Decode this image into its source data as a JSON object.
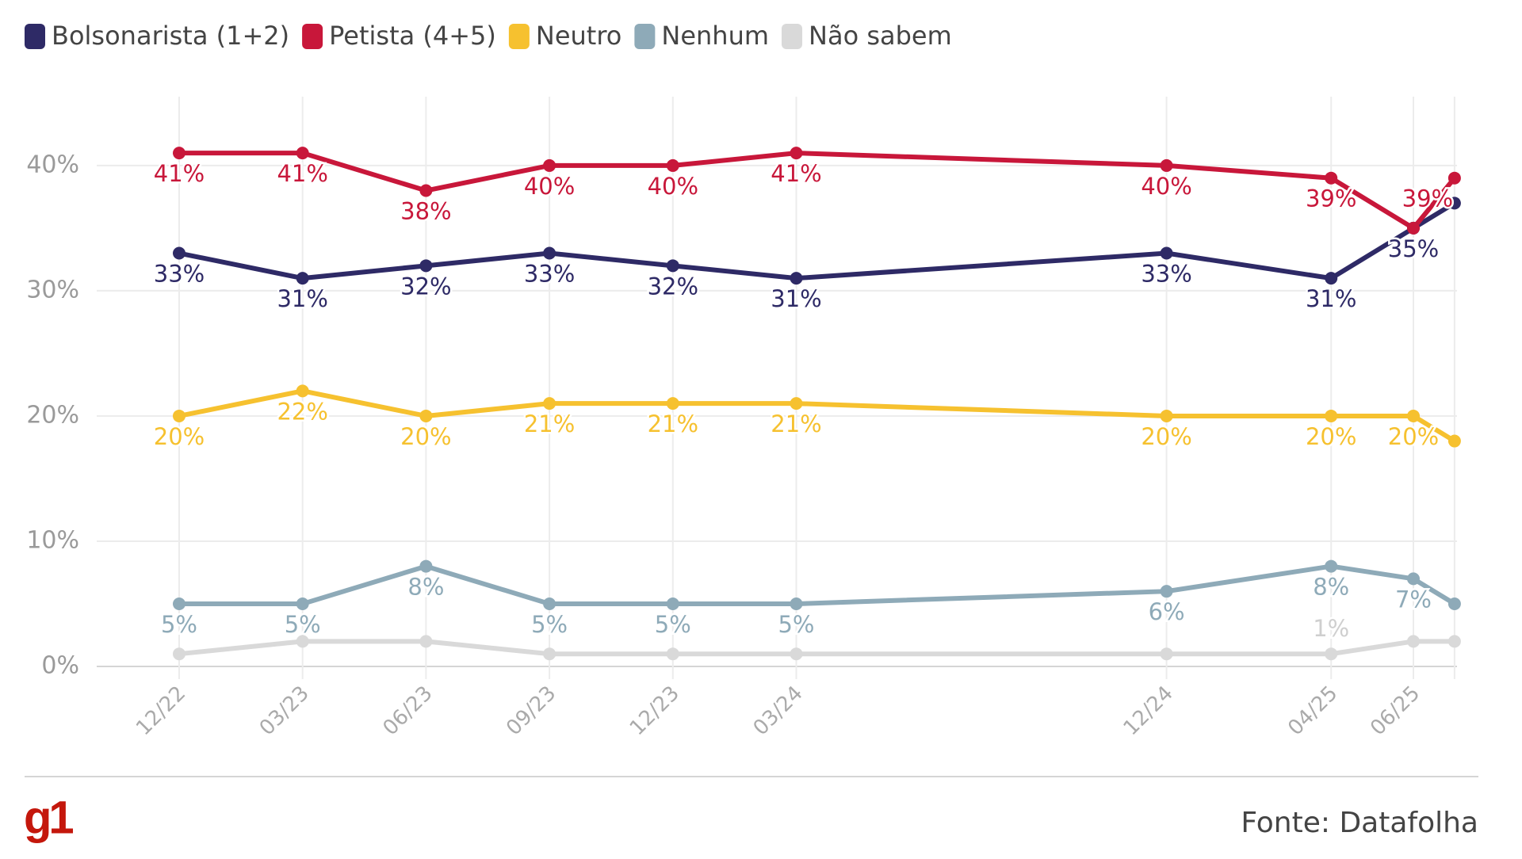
{
  "chart_data": {
    "type": "line",
    "x": [
      "12/22",
      "03/23",
      "06/23",
      "09/23",
      "12/23",
      "03/24",
      "12/24",
      "04/25",
      "06/25",
      null
    ],
    "series": [
      {
        "name": "Bolsonarista (1+2)",
        "color": "#2e2a66",
        "values": [
          33,
          31,
          32,
          33,
          32,
          31,
          33,
          31,
          35,
          37
        ],
        "value_labels": [
          "33%",
          "31%",
          "32%",
          "33%",
          "32%",
          "31%",
          "33%",
          "31%",
          "35%",
          null
        ]
      },
      {
        "name": "Petista (4+5)",
        "color": "#c8173a",
        "values": [
          41,
          41,
          38,
          40,
          40,
          41,
          40,
          39,
          35,
          39
        ],
        "value_labels": [
          "41%",
          "41%",
          "38%",
          "40%",
          "40%",
          "41%",
          "40%",
          "39%",
          null,
          "39%"
        ]
      },
      {
        "name": "Neutro",
        "color": "#f6c12f",
        "values": [
          20,
          22,
          20,
          21,
          21,
          21,
          20,
          20,
          20,
          18
        ],
        "value_labels": [
          "20%",
          "22%",
          "20%",
          "21%",
          "21%",
          "21%",
          "20%",
          "20%",
          "20%",
          null
        ]
      },
      {
        "name": "Nenhum",
        "color": "#8eaab8",
        "values": [
          5,
          5,
          8,
          5,
          5,
          5,
          6,
          8,
          7,
          5
        ],
        "value_labels": [
          "5%",
          "5%",
          "8%",
          "5%",
          "5%",
          "5%",
          "6%",
          "8%",
          "7%",
          null
        ]
      },
      {
        "name": "Não sabem",
        "color": "#d9d9d9",
        "values": [
          1,
          2,
          2,
          1,
          1,
          1,
          1,
          1,
          2,
          2
        ],
        "value_labels": [
          null,
          null,
          null,
          null,
          null,
          null,
          null,
          "1%",
          null,
          null
        ]
      }
    ],
    "ylim": [
      0,
      45.5
    ],
    "yticks": [
      {
        "value": 0,
        "label": "0%"
      },
      {
        "value": 10,
        "label": "10%"
      },
      {
        "value": 20,
        "label": "20%"
      },
      {
        "value": 30,
        "label": "30%"
      },
      {
        "value": 40,
        "label": "40%"
      }
    ],
    "grid": true,
    "source": "Fonte: Datafolha",
    "logo": "g1"
  }
}
